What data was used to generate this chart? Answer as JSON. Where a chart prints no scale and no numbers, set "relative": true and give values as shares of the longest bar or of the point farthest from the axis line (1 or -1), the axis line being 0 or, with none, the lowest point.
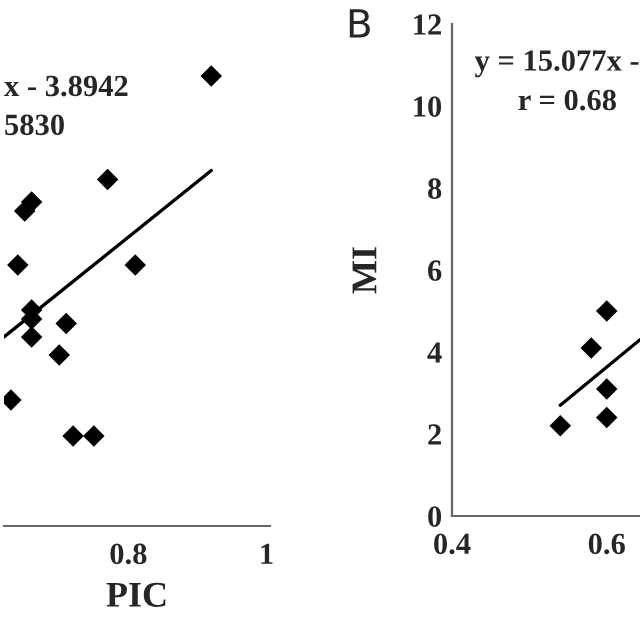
{
  "chart_data": [
    {
      "type": "scatter",
      "xlabel": "PIC",
      "relative": true,
      "xlim": [
        0.62,
        1.005
      ],
      "xticks": [
        0.8,
        1
      ],
      "grid": false,
      "annotations": [
        "x - 3.8942",
        "5830"
      ],
      "tick_labels": "x",
      "series": [
        {
          "marker": "diamond",
          "color": "#000000",
          "x": [
            0.92,
            0.77,
            0.65,
            0.66,
            0.64,
            0.81,
            0.66,
            0.66,
            0.66,
            0.71,
            0.7,
            0.63,
            0.72,
            0.75
          ],
          "values": [
            1,
            0.77,
            0.7,
            0.72,
            0.58,
            0.58,
            0.48,
            0.46,
            0.42,
            0.45,
            0.38,
            0.28,
            0.2,
            0.2
          ]
        },
        {
          "type": "line",
          "color": "#000000",
          "x": [
            0.62,
            0.92
          ],
          "values": [
            0.42,
            0.79
          ]
        }
      ]
    },
    {
      "type": "scatter",
      "title": "B",
      "ylabel": "MI",
      "xlim": [
        0.4,
        0.643
      ],
      "xticks": [
        0.4,
        0.6
      ],
      "ylim": [
        0,
        12
      ],
      "yticks": [
        0,
        2,
        4,
        6,
        8,
        10,
        12
      ],
      "grid": false,
      "annotations": [
        "y = 15.077x -",
        "r = 0.68"
      ],
      "series": [
        {
          "marker": "diamond",
          "color": "#000000",
          "x": [
            0.54,
            0.58,
            0.6,
            0.6,
            0.6
          ],
          "values": [
            2.2,
            4.1,
            5.0,
            3.1,
            2.4
          ]
        },
        {
          "type": "line",
          "color": "#000000",
          "x": [
            0.54,
            0.643
          ],
          "values": [
            2.7,
            4.3
          ]
        }
      ]
    }
  ]
}
